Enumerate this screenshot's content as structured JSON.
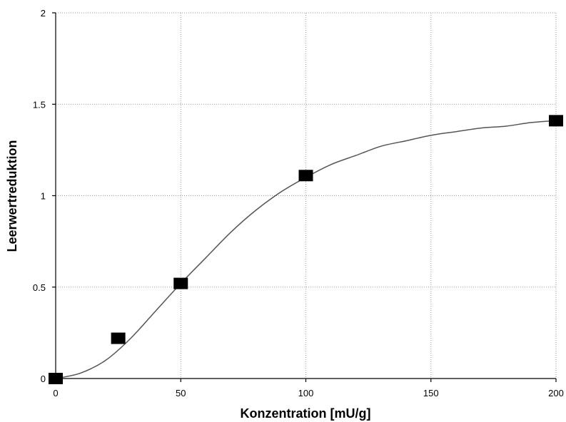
{
  "chart_data": {
    "type": "scatter",
    "title": "",
    "xlabel": "Konzentration [mU/g]",
    "ylabel": "Leerwertreduktion",
    "xlim": [
      0,
      200
    ],
    "ylim": [
      0,
      2
    ],
    "x_ticks": [
      0,
      50,
      100,
      150,
      200
    ],
    "y_ticks": [
      0,
      0.5,
      1,
      1.5,
      2
    ],
    "grid": true,
    "series": [
      {
        "x": [
          0,
          25,
          50,
          100,
          200
        ],
        "y": [
          0.0,
          0.22,
          0.52,
          1.11,
          1.41
        ],
        "marker": "square",
        "color": "#000000"
      }
    ],
    "fit_curve": {
      "x": [
        0,
        10,
        20,
        30,
        40,
        50,
        60,
        70,
        80,
        90,
        100,
        110,
        120,
        130,
        140,
        150,
        160,
        170,
        180,
        190,
        200
      ],
      "y": [
        0.0,
        0.03,
        0.1,
        0.22,
        0.37,
        0.52,
        0.66,
        0.8,
        0.92,
        1.02,
        1.1,
        1.17,
        1.22,
        1.27,
        1.3,
        1.33,
        1.35,
        1.37,
        1.38,
        1.4,
        1.41
      ],
      "color": "#555555"
    }
  }
}
